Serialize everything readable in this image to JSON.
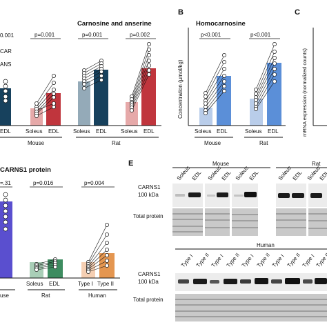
{
  "panels": {
    "A": {
      "title": "Carnosine and anserine",
      "legend": [
        "CAR",
        "ANS"
      ],
      "pvals": [
        "p=0.001",
        "p=0.001",
        "p=0.002"
      ],
      "partial_pval": "0.001",
      "categories": [
        "EDL",
        "Soleus",
        "EDL",
        "Soleus",
        "EDL",
        "Soleus",
        "EDL"
      ],
      "groups": [
        "Mouse",
        "Rat"
      ]
    },
    "B": {
      "letter": "B",
      "title": "Homocarnosine",
      "ylabel": "Concentration (µmol/kg)",
      "pvals": [
        "p<0.001",
        "p<0.001"
      ],
      "categories": [
        "Soleus",
        "EDL",
        "Soleus",
        "EDL"
      ],
      "groups": [
        "Mouse",
        "Rat"
      ]
    },
    "C": {
      "letter": "C",
      "ylabel": "mRNA expression (normalized counts)"
    },
    "D": {
      "title": "CARNS1 protein",
      "pvals": [
        "p=0.016",
        "p=0.004"
      ],
      "partial_pval": "=.31",
      "categories": [
        "Soleus",
        "EDL",
        "Type I",
        "Type II"
      ],
      "groups": [
        "Rat",
        "Human"
      ],
      "partial_group": "use"
    },
    "E": {
      "letter": "E",
      "group_mouse": "Mouse",
      "group_rat": "Rat",
      "group_human": "Human",
      "lane_labels_mouse": [
        "Soleus",
        "EDL",
        "Soleus",
        "EDL",
        "Soleus",
        "EDL"
      ],
      "lane_labels_rat": [
        "Soleus",
        "EDL",
        "Soleus",
        "EDL"
      ],
      "lane_labels_human": [
        "Type I",
        "Type II",
        "Type I",
        "Type II",
        "Type I",
        "Type II",
        "Type I",
        "Type II",
        "Type I",
        "Type II"
      ],
      "row_label": "CARNS1",
      "kda_label": "100 kDa",
      "total_label": "Total protein"
    }
  },
  "colors": {
    "mouse_soleus": "#e6a9a9",
    "mouse_edl": "#c0353d",
    "navy_soleus": "#94aab8",
    "navy_edl": "#17415d",
    "homo_soleus": "#b9cdea",
    "homo_edl": "#5b8fd8",
    "purple": "#5a4fcf",
    "green_soleus": "#a9ceb7",
    "green_edl": "#3d8c60",
    "orange_soleus": "#f5cfb3",
    "orange_edl": "#e49650"
  }
}
